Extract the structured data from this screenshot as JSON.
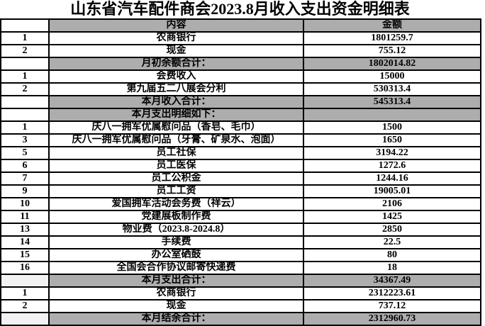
{
  "title": "山东省汽车配件商会2023.8月收入支出资金明细表",
  "table": {
    "columns": [
      {
        "key": "num",
        "label": ""
      },
      {
        "key": "content",
        "label": "内容"
      },
      {
        "key": "amount",
        "label": "金额"
      }
    ],
    "rows": [
      {
        "num": "1",
        "content": "农商银行",
        "amount": "1801259.7",
        "type": "normal"
      },
      {
        "num": "2",
        "content": "现金",
        "amount": "755.12",
        "type": "normal"
      },
      {
        "num": "",
        "content": "月初余额合计：",
        "amount": "1802014.82",
        "type": "total",
        "num_shade": "none"
      },
      {
        "num": "1",
        "content": "会费收入",
        "amount": "15000",
        "type": "normal"
      },
      {
        "num": "2",
        "content": "第九届五二八展会分利",
        "amount": "530313.4",
        "type": "normal"
      },
      {
        "num": "",
        "content": "本月收入合计：",
        "amount": "545313.4",
        "type": "total",
        "num_shade": "none"
      },
      {
        "num": "",
        "content": "本月支出明细如下：",
        "amount": "",
        "type": "total",
        "num_shade": "none"
      },
      {
        "num": "1",
        "content": "庆八一拥军优属慰问品（香皂、毛巾）",
        "amount": "1500",
        "type": "normal"
      },
      {
        "num": "3",
        "content": "庆八一拥军优属慰问品（牙膏、矿泉水、泡面）",
        "amount": "1650",
        "type": "normal"
      },
      {
        "num": "5",
        "content": "员工社保",
        "amount": "3194.22",
        "type": "normal"
      },
      {
        "num": "6",
        "content": "员工医保",
        "amount": "1272.6",
        "type": "normal"
      },
      {
        "num": "7",
        "content": "员工公积金",
        "amount": "1244.16",
        "type": "normal"
      },
      {
        "num": "9",
        "content": "员工工资",
        "amount": "19005.01",
        "type": "normal"
      },
      {
        "num": "10",
        "content": "爱国拥军活动会务费（祥云）",
        "amount": "2106",
        "type": "normal"
      },
      {
        "num": "11",
        "content": "党建展板制作费",
        "amount": "1425",
        "type": "normal"
      },
      {
        "num": "13",
        "content": "物业费（2023.8-2024.8）",
        "amount": "2850",
        "type": "normal"
      },
      {
        "num": "14",
        "content": "手续费",
        "amount": "22.5",
        "type": "normal"
      },
      {
        "num": "15",
        "content": "办公室硒鼓",
        "amount": "80",
        "type": "normal"
      },
      {
        "num": "16",
        "content": "全国会合作协议邮寄快递费",
        "amount": "18",
        "type": "normal"
      },
      {
        "num": "",
        "content": "本月支出合计：",
        "amount": "34367.49",
        "type": "total",
        "num_shade": "light"
      },
      {
        "num": "1",
        "content": "农商银行",
        "amount": "2312223.61",
        "type": "normal"
      },
      {
        "num": "2",
        "content": "现金",
        "amount": "737.12",
        "type": "normal"
      },
      {
        "num": "",
        "content": "本月结余合计：",
        "amount": "2312960.73",
        "type": "total",
        "num_shade": "light"
      }
    ]
  },
  "colors": {
    "header_bg": "#ADADAD",
    "total_row_bg": "#ADADAD",
    "total_num_cell_bg": "#F2F2F2",
    "border": "#000000",
    "text": "#000000",
    "page_bg": "#FFFFFF"
  }
}
